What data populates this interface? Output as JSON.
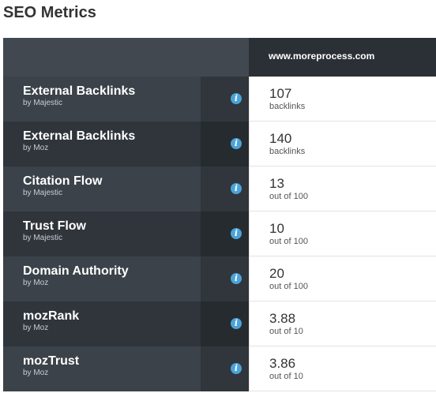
{
  "page": {
    "title": "SEO Metrics"
  },
  "table": {
    "site": "www.moreprocess.com",
    "info_icon_glyph": "i",
    "colors": {
      "header_dark": "#2b3036",
      "row_dark": "#3b4249",
      "info_icon": "#4ba3d8"
    },
    "rows": [
      {
        "name": "External Backlinks",
        "source": "by Majestic",
        "value": "107",
        "unit": "backlinks"
      },
      {
        "name": "External Backlinks",
        "source": "by Moz",
        "value": "140",
        "unit": "backlinks"
      },
      {
        "name": "Citation Flow",
        "source": "by Majestic",
        "value": "13",
        "unit": "out of 100"
      },
      {
        "name": "Trust Flow",
        "source": "by Majestic",
        "value": "10",
        "unit": "out of 100"
      },
      {
        "name": "Domain Authority",
        "source": "by Moz",
        "value": "20",
        "unit": "out of 100"
      },
      {
        "name": "mozRank",
        "source": "by Moz",
        "value": "3.88",
        "unit": "out of 10"
      },
      {
        "name": "mozTrust",
        "source": "by Moz",
        "value": "3.86",
        "unit": "out of 10"
      }
    ]
  }
}
